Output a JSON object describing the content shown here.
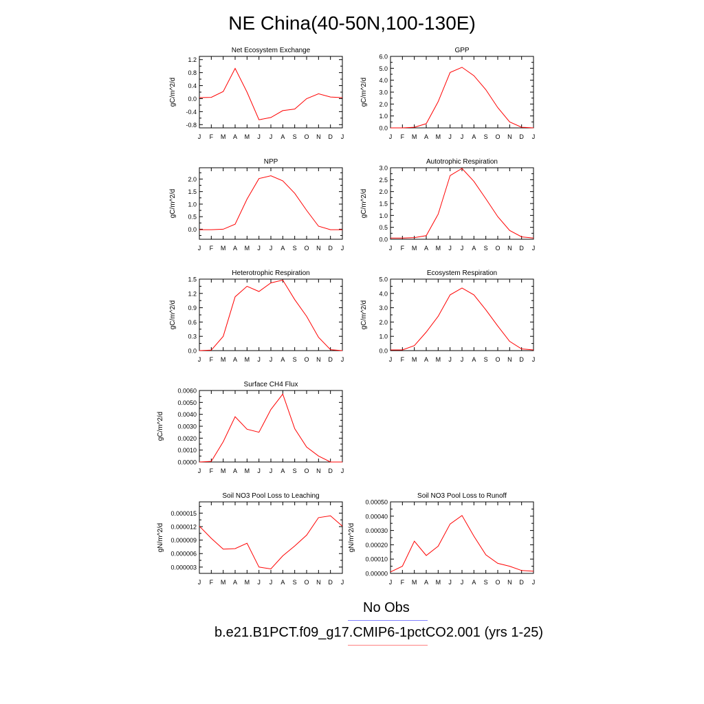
{
  "page": {
    "title": "NE China(40-50N,100-130E)",
    "legend": {
      "obs_label": "No Obs",
      "model_label": "b.e21.B1PCT.f09_g17.CMIP6-1pctCO2.001 (yrs 1-25)"
    },
    "colors": {
      "model_line": "#ff0000",
      "obs_legend": "#8080ff",
      "model_legend": "#ff8080"
    }
  },
  "chart_data": [
    {
      "type": "line",
      "title": "Net Ecosystem Exchange",
      "ylabel": "gC/m^2/d",
      "categories": [
        "J",
        "F",
        "M",
        "A",
        "M",
        "J",
        "J",
        "A",
        "S",
        "O",
        "N",
        "D",
        "J"
      ],
      "ylim": [
        -0.9,
        1.3
      ],
      "yticks": [
        -0.8,
        -0.4,
        0.0,
        0.4,
        0.8,
        1.2
      ],
      "ytick_labels": [
        "-0.8",
        "-0.4",
        "0.0",
        "0.4",
        "0.8",
        "1.2"
      ],
      "values": [
        0.03,
        0.04,
        0.22,
        0.93,
        0.2,
        -0.65,
        -0.58,
        -0.37,
        -0.32,
        0.0,
        0.15,
        0.05,
        0.03
      ]
    },
    {
      "type": "line",
      "title": "GPP",
      "ylabel": "gC/m^2/d",
      "categories": [
        "J",
        "F",
        "M",
        "A",
        "M",
        "J",
        "J",
        "A",
        "S",
        "O",
        "N",
        "D",
        "J"
      ],
      "ylim": [
        0.0,
        6.0
      ],
      "yticks": [
        0.0,
        1.0,
        2.0,
        3.0,
        4.0,
        5.0,
        6.0
      ],
      "ytick_labels": [
        "0.0",
        "1.0",
        "2.0",
        "3.0",
        "4.0",
        "5.0",
        "6.0"
      ],
      "values": [
        0.0,
        0.0,
        0.05,
        0.35,
        2.2,
        4.65,
        5.08,
        4.38,
        3.2,
        1.7,
        0.5,
        0.05,
        0.0
      ]
    },
    {
      "type": "line",
      "title": "NPP",
      "ylabel": "gC/m^2/d",
      "categories": [
        "J",
        "F",
        "M",
        "A",
        "M",
        "J",
        "J",
        "A",
        "S",
        "O",
        "N",
        "D",
        "J"
      ],
      "ylim": [
        -0.4,
        2.45
      ],
      "yticks": [
        0.0,
        0.5,
        1.0,
        1.5,
        2.0
      ],
      "ytick_labels": [
        "0.0",
        "0.5",
        "1.0",
        "1.5",
        "2.0"
      ],
      "values": [
        -0.02,
        -0.02,
        0.0,
        0.2,
        1.2,
        2.02,
        2.13,
        1.93,
        1.43,
        0.75,
        0.12,
        -0.02,
        -0.02
      ]
    },
    {
      "type": "line",
      "title": "Autotrophic Respiration",
      "ylabel": "gC/m^2/d",
      "categories": [
        "J",
        "F",
        "M",
        "A",
        "M",
        "J",
        "J",
        "A",
        "S",
        "O",
        "N",
        "D",
        "J"
      ],
      "ylim": [
        0.0,
        3.0
      ],
      "yticks": [
        0.0,
        0.5,
        1.0,
        1.5,
        2.0,
        2.5,
        3.0
      ],
      "ytick_labels": [
        "0.0",
        "0.5",
        "1.0",
        "1.5",
        "2.0",
        "2.5",
        "3.0"
      ],
      "values": [
        0.05,
        0.05,
        0.07,
        0.15,
        1.05,
        2.67,
        2.97,
        2.43,
        1.7,
        0.95,
        0.37,
        0.1,
        0.05
      ]
    },
    {
      "type": "line",
      "title": "Heterotrophic Respiration",
      "ylabel": "gC/m^2/d",
      "categories": [
        "J",
        "F",
        "M",
        "A",
        "M",
        "J",
        "J",
        "A",
        "S",
        "O",
        "N",
        "D",
        "J"
      ],
      "ylim": [
        0.0,
        1.5
      ],
      "yticks": [
        0.0,
        0.3,
        0.6,
        0.9,
        1.2,
        1.5
      ],
      "ytick_labels": [
        "0.0",
        "0.3",
        "0.6",
        "0.9",
        "1.2",
        "1.5"
      ],
      "values": [
        0.0,
        0.01,
        0.3,
        1.13,
        1.35,
        1.24,
        1.42,
        1.48,
        1.07,
        0.72,
        0.28,
        0.02,
        0.0
      ]
    },
    {
      "type": "line",
      "title": "Ecosystem Respiration",
      "ylabel": "gC/m^2/d",
      "categories": [
        "J",
        "F",
        "M",
        "A",
        "M",
        "J",
        "J",
        "A",
        "S",
        "O",
        "N",
        "D",
        "J"
      ],
      "ylim": [
        0.0,
        5.0
      ],
      "yticks": [
        0.0,
        1.0,
        2.0,
        3.0,
        4.0,
        5.0
      ],
      "ytick_labels": [
        "0.0",
        "1.0",
        "2.0",
        "3.0",
        "4.0",
        "5.0"
      ],
      "values": [
        0.05,
        0.05,
        0.35,
        1.3,
        2.4,
        3.9,
        4.38,
        3.9,
        2.85,
        1.72,
        0.65,
        0.12,
        0.05
      ]
    },
    {
      "type": "line",
      "title": "Surface CH4 Flux",
      "ylabel": "gC/m^2/d",
      "categories": [
        "J",
        "F",
        "M",
        "A",
        "M",
        "J",
        "J",
        "A",
        "S",
        "O",
        "N",
        "D",
        "J"
      ],
      "ylim": [
        0.0,
        0.006
      ],
      "yticks": [
        0.0,
        0.001,
        0.002,
        0.003,
        0.004,
        0.005,
        0.006
      ],
      "ytick_labels": [
        "0.0000",
        "0.0010",
        "0.0020",
        "0.0030",
        "0.0040",
        "0.0050",
        "0.0060"
      ],
      "values": [
        0.0,
        5e-05,
        0.0017,
        0.0038,
        0.00275,
        0.0025,
        0.0044,
        0.0057,
        0.0028,
        0.00125,
        0.0005,
        0.0,
        0.0
      ]
    },
    {
      "type": "line",
      "title": "Soil NO3 Pool Loss to Leaching",
      "ylabel": "gN/m^2/d",
      "categories": [
        "J",
        "F",
        "M",
        "A",
        "M",
        "J",
        "J",
        "A",
        "S",
        "O",
        "N",
        "D",
        "J"
      ],
      "ylim": [
        1.6e-06,
        1.75e-05
      ],
      "yticks": [
        3e-06,
        6e-06,
        9e-06,
        1.2e-05,
        1.5e-05
      ],
      "ytick_labels": [
        "0.000003",
        "0.000006",
        "0.000009",
        "0.000012",
        "0.000015"
      ],
      "values": [
        1.21e-05,
        9.4e-06,
        7e-06,
        7.1e-06,
        8.3e-06,
        3e-06,
        2.6e-06,
        5.5e-06,
        7.7e-06,
        1.01e-05,
        1.4e-05,
        1.44e-05,
        1.21e-05
      ]
    },
    {
      "type": "line",
      "title": "Soil NO3 Pool Loss to Runoff",
      "ylabel": "gN/m^2/d",
      "categories": [
        "J",
        "F",
        "M",
        "A",
        "M",
        "J",
        "J",
        "A",
        "S",
        "O",
        "N",
        "D",
        "J"
      ],
      "ylim": [
        0.0,
        0.0005
      ],
      "yticks": [
        0.0,
        0.0001,
        0.0002,
        0.0003,
        0.0004,
        0.0005
      ],
      "ytick_labels": [
        "0.00000",
        "0.00010",
        "0.00020",
        "0.00030",
        "0.00040",
        "0.00050"
      ],
      "values": [
        1e-05,
        5e-05,
        0.000225,
        0.000125,
        0.00019,
        0.000345,
        0.000405,
        0.00026,
        0.00013,
        7e-05,
        5e-05,
        2e-05,
        1.5e-05
      ]
    }
  ]
}
